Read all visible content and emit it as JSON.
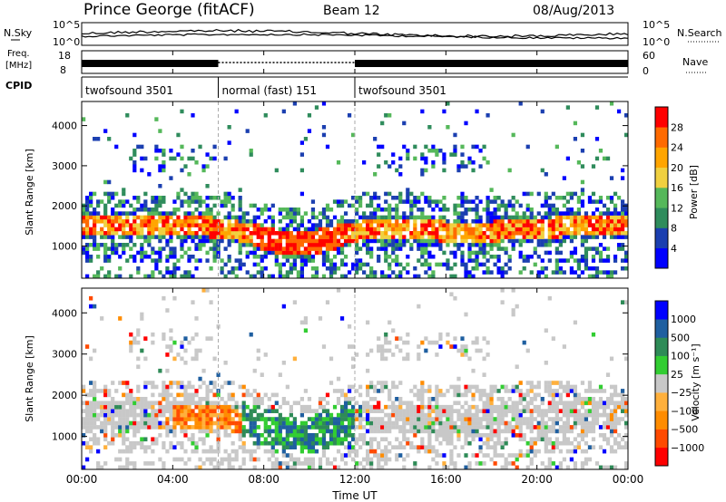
{
  "header": {
    "station": "Prince George (fitACF)",
    "beam": "Beam 12",
    "date": "08/Aug/2013"
  },
  "noise_panel": {
    "left_label": "N.Sky",
    "left_ticks": [
      "10^5",
      "10^0"
    ],
    "right_ticks": [
      "10^5",
      "10^0"
    ],
    "right_label": "N.Search"
  },
  "freq_panel": {
    "left_label_1": "Freq.",
    "left_label_2": "[MHz]",
    "left_ticks": [
      "18",
      "8"
    ],
    "right_ticks": [
      "60",
      "0"
    ],
    "right_label": "Nave"
  },
  "cpid": {
    "label": "CPID",
    "segments": [
      {
        "name": "twofsound 3501",
        "start": 0,
        "end": 6
      },
      {
        "name": "normal (fast) 151",
        "start": 6,
        "end": 12
      },
      {
        "name": "twofsound 3501",
        "start": 12,
        "end": 24
      }
    ]
  },
  "xaxis": {
    "label": "Time UT",
    "ticks": [
      "00:00",
      "04:00",
      "08:00",
      "12:00",
      "16:00",
      "20:00",
      "00:00"
    ]
  },
  "colors": {
    "power": [
      "#0000ff",
      "#1b3fb0",
      "#2f8c5c",
      "#55b85a",
      "#f0d040",
      "#ffa500",
      "#ff6a00",
      "#ff0000"
    ],
    "velocity": [
      "#ff0000",
      "#ff4a00",
      "#ff8c00",
      "#ffb03c",
      "#c8c8c8",
      "#32cd32",
      "#2e8b57",
      "#1f5fa0",
      "#0000ff"
    ]
  },
  "chart_data": [
    {
      "type": "heatmap",
      "title": "",
      "xlabel": "",
      "ylabel": "Slant Range [km]",
      "xlim": [
        0,
        24
      ],
      "ylim": [
        200,
        4600
      ],
      "yticks": [
        "1000",
        "2000",
        "3000",
        "4000"
      ],
      "colorbar": {
        "label": "Power [dB]",
        "ticks": [
          "28",
          "24",
          "20",
          "16",
          "12",
          "8",
          "4"
        ],
        "range": [
          0,
          30
        ]
      }
    },
    {
      "type": "heatmap",
      "title": "",
      "xlabel": "Time UT",
      "ylabel": "Slant Range [km]",
      "xlim": [
        0,
        24
      ],
      "ylim": [
        200,
        4600
      ],
      "yticks": [
        "1000",
        "2000",
        "3000",
        "4000"
      ],
      "colorbar": {
        "label": "Velocity [m s⁻¹]",
        "ticks": [
          "1000",
          "500",
          "100",
          "25",
          "−25",
          "−100",
          "−500",
          "−1000"
        ],
        "range": [
          -1000,
          1000
        ]
      }
    }
  ]
}
